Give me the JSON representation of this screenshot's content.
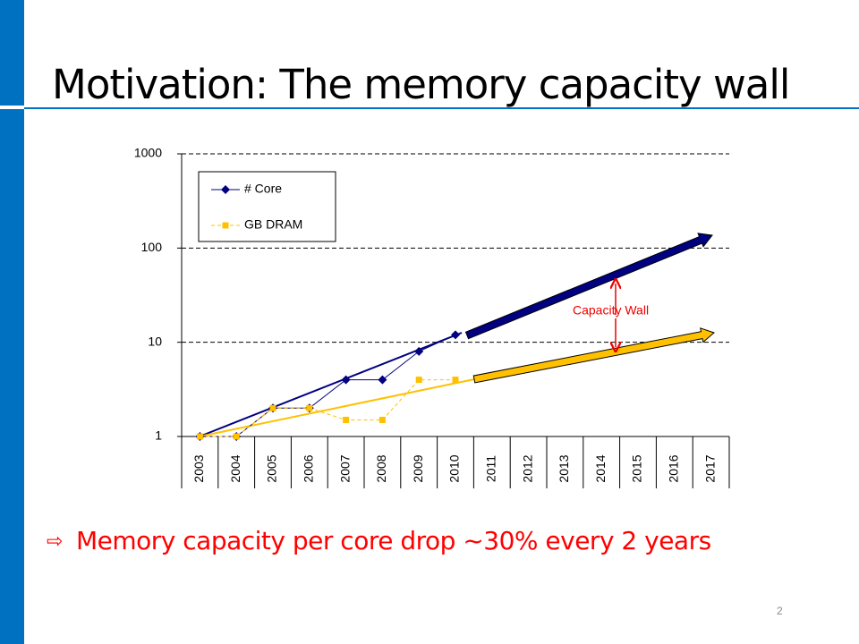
{
  "title": "Motivation: The memory capacity wall",
  "bullet": "Memory capacity per core drop ~30% every 2 years",
  "page_number": "2",
  "chart_data": {
    "type": "line",
    "categories": [
      "2003",
      "2004",
      "2005",
      "2006",
      "2007",
      "2008",
      "2009",
      "2010",
      "2011",
      "2012",
      "2013",
      "2014",
      "2015",
      "2016",
      "2017"
    ],
    "series": [
      {
        "name": "# Core",
        "color": "#000080",
        "marker": "diamond",
        "dash": false,
        "values": [
          1,
          1,
          2,
          2,
          4,
          4,
          8,
          12,
          null,
          null,
          null,
          null,
          null,
          null,
          null
        ]
      },
      {
        "name": "GB DRAM",
        "color": "#ffc000",
        "marker": "square",
        "dash": true,
        "values": [
          1,
          1,
          2,
          2,
          1.5,
          1.5,
          4,
          4,
          null,
          null,
          null,
          null,
          null,
          null,
          null
        ]
      }
    ],
    "ylim": [
      1,
      1000
    ],
    "yticks": [
      1,
      10,
      100,
      1000
    ],
    "log_y": true,
    "grid": true,
    "legend": "upper left",
    "annotation": "Capacity Wall"
  }
}
